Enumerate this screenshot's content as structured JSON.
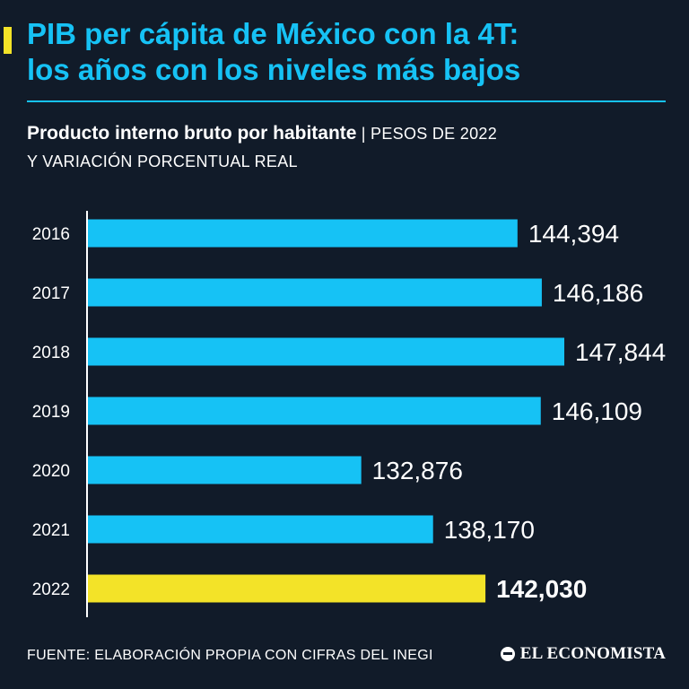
{
  "header": {
    "title_line1": "PIB per cápita de México con la 4T:",
    "title_line2": "los años con los niveles más bajos",
    "subtitle_bold": "Producto interno bruto por habitante",
    "subtitle_sep": "|",
    "subtitle_unit": "PESOS DE 2022",
    "subtitle_line2": "Y VARIACIÓN PORCENTUAL REAL"
  },
  "footer": {
    "source": "FUENTE: ELABORACIÓN PROPIA CON CIFRAS DEL INEGI",
    "logo": "EL ECONOMISTA"
  },
  "colors": {
    "background": "#111b29",
    "bar": "#16c2f5",
    "highlight": "#f3e328",
    "text": "#ffffff"
  },
  "chart_data": {
    "type": "bar",
    "orientation": "horizontal",
    "title": "Producto interno bruto por habitante",
    "xlabel": "Pesos de 2022",
    "ylabel": "",
    "categories": [
      "2016",
      "2017",
      "2018",
      "2019",
      "2020",
      "2021",
      "2022"
    ],
    "values": [
      144394,
      146186,
      147844,
      146109,
      132876,
      138170,
      142030
    ],
    "value_labels": [
      "144,394",
      "146,186",
      "147,844",
      "146,109",
      "132,876",
      "138,170",
      "142,030"
    ],
    "highlight_category": "2022",
    "xlim": [
      120000,
      150000
    ],
    "grid": false
  }
}
